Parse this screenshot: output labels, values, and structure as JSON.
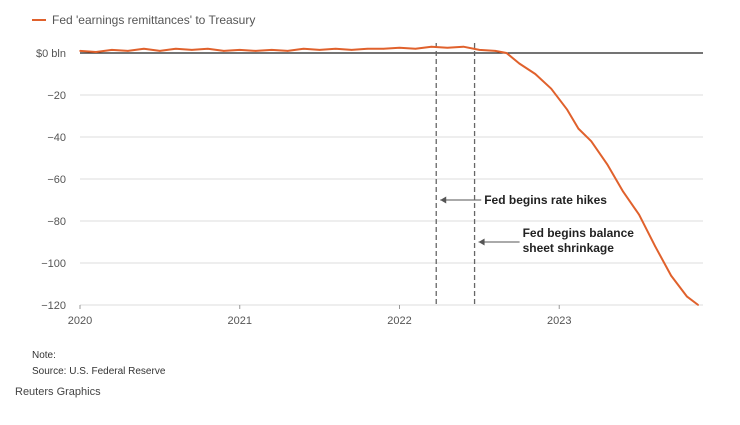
{
  "chart_data": {
    "type": "line",
    "title": "",
    "xlabel": "",
    "ylabel": "",
    "x_ticks": [
      "2020",
      "2021",
      "2022",
      "2023"
    ],
    "y_ticks": [
      "$0 bln",
      "−20",
      "−40",
      "−60",
      "−80",
      "−100",
      "−120"
    ],
    "ylim": [
      -120,
      0
    ],
    "xlim": [
      2020.0,
      2023.9
    ],
    "grid": "horizontal",
    "series": [
      {
        "name": "Fed 'earnings remittances' to Treasury",
        "color": "#e0612c",
        "x": [
          2020.0,
          2020.1,
          2020.2,
          2020.3,
          2020.4,
          2020.5,
          2020.6,
          2020.7,
          2020.8,
          2020.9,
          2021.0,
          2021.1,
          2021.2,
          2021.3,
          2021.4,
          2021.5,
          2021.6,
          2021.7,
          2021.8,
          2021.9,
          2022.0,
          2022.1,
          2022.2,
          2022.3,
          2022.4,
          2022.5,
          2022.6,
          2022.67,
          2022.75,
          2022.85,
          2022.95,
          2023.05,
          2023.12,
          2023.2,
          2023.3,
          2023.4,
          2023.5,
          2023.6,
          2023.7,
          2023.8,
          2023.87
        ],
        "values": [
          1,
          0.5,
          1.5,
          1,
          2,
          1,
          2,
          1.5,
          2,
          1,
          1.5,
          1,
          1.5,
          1,
          2,
          1.5,
          2,
          1.5,
          2,
          2,
          2.5,
          2,
          3,
          2.5,
          3,
          1.5,
          1,
          0,
          -5,
          -10,
          -17,
          -27,
          -36,
          -42,
          -53,
          -66,
          -77,
          -92,
          -106,
          -116,
          -120
        ]
      }
    ],
    "annotations": [
      {
        "x": 2022.23,
        "line1": "Fed begins rate hikes",
        "line2": "",
        "y_label": -70
      },
      {
        "x": 2022.47,
        "line1": "Fed begins balance",
        "line2": "sheet shrinkage",
        "y_label": -90
      }
    ]
  },
  "legend": {
    "label": "Fed 'earnings remittances' to Treasury"
  },
  "notes": {
    "note": "Note:",
    "source": "Source: U.S. Federal Reserve"
  },
  "credit": "Reuters Graphics"
}
